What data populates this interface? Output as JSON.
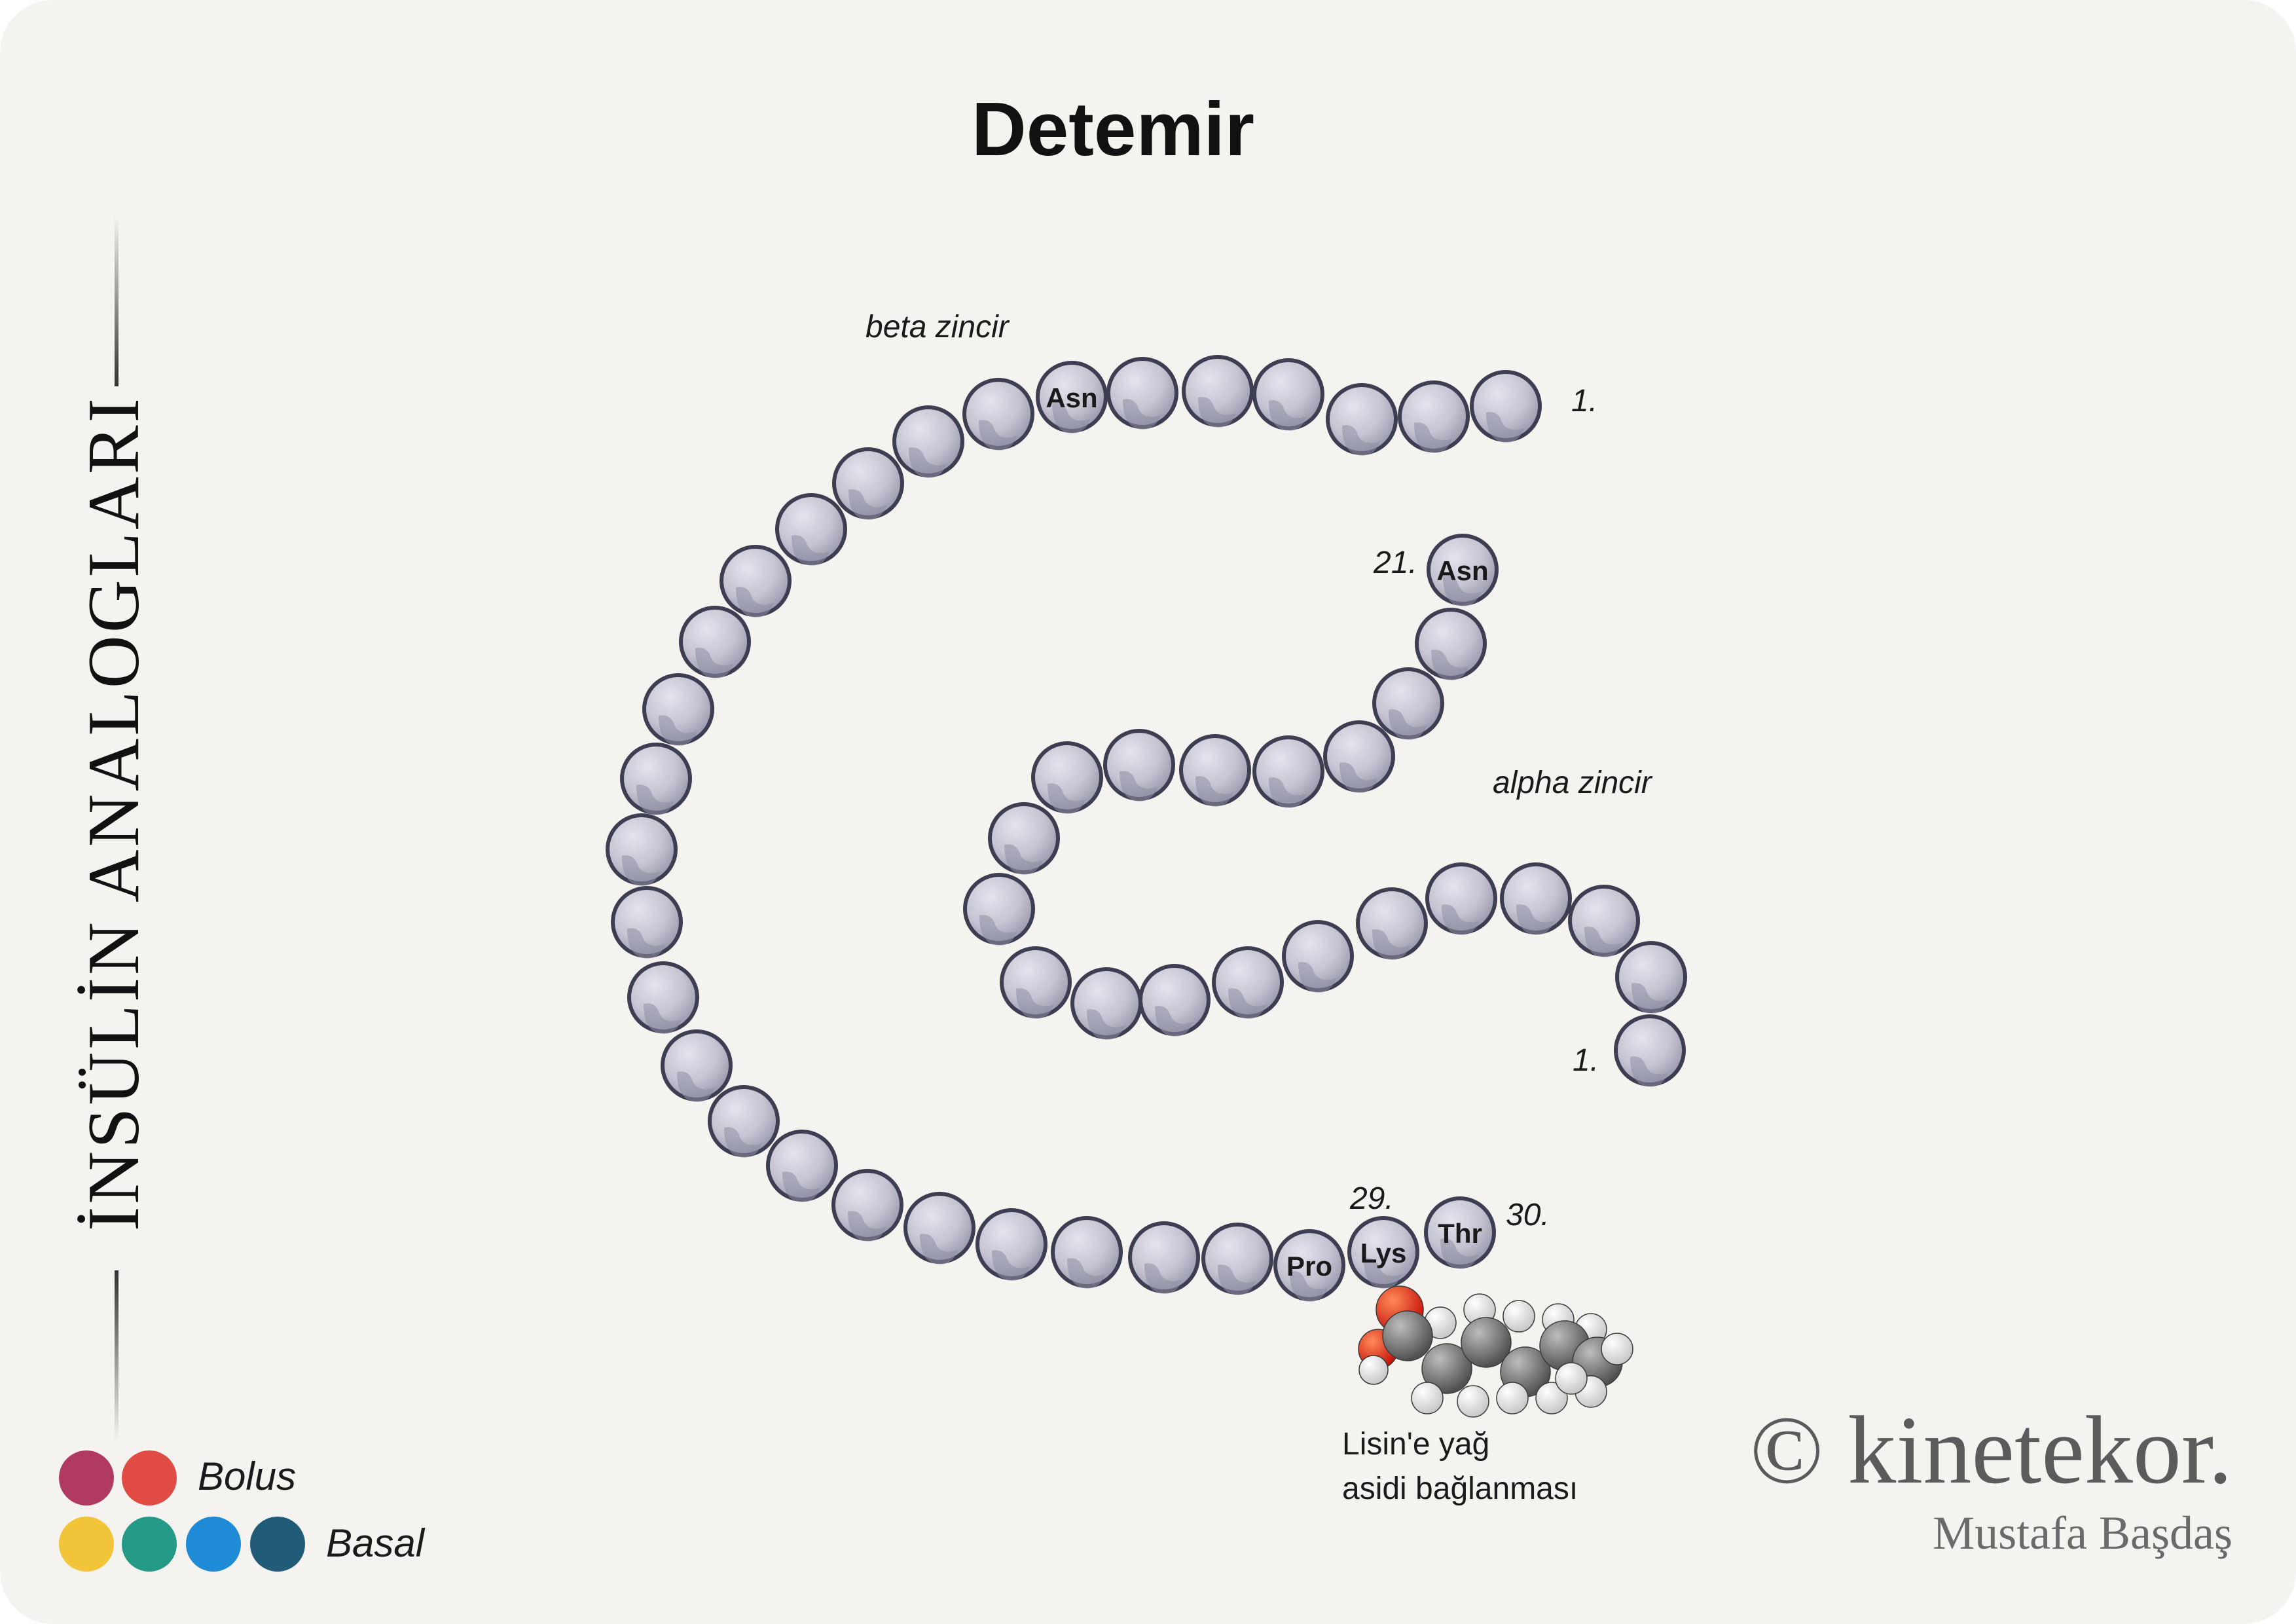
{
  "title": "Detemir",
  "side_title": "İNSÜLİN ANALOGLARI",
  "labels": {
    "beta_chain": "beta zincir",
    "alpha_chain": "alpha zincir",
    "beta_start": "1.",
    "alpha_start": "1.",
    "alpha_end": "21.",
    "beta_29": "29.",
    "beta_30": "30.",
    "fatty_acid_note_line1": "Lisin'e yağ",
    "fatty_acid_note_line2": "asidi bağlanması"
  },
  "residues": {
    "beta_asn": "Asn",
    "alpha_asn": "Asn",
    "pro": "Pro",
    "lys": "Lys",
    "thr": "Thr"
  },
  "legend": {
    "bolus_label": "Bolus",
    "basal_label": "Basal",
    "bolus_colors": [
      "#b03a62",
      "#e04b43"
    ],
    "basal_colors": [
      "#f2c43a",
      "#249a86",
      "#1f8ad6",
      "#225b78"
    ]
  },
  "branding": {
    "brand": "© kinetekor.",
    "author": "Mustafa Başdaş"
  },
  "colors": {
    "bead_fill": "#c6c6d4",
    "bead_stroke": "#3e3e52",
    "oxygen": "#e62b1e",
    "carbon": "#6e6e6e",
    "hydrogen": "#f2f2f2"
  }
}
